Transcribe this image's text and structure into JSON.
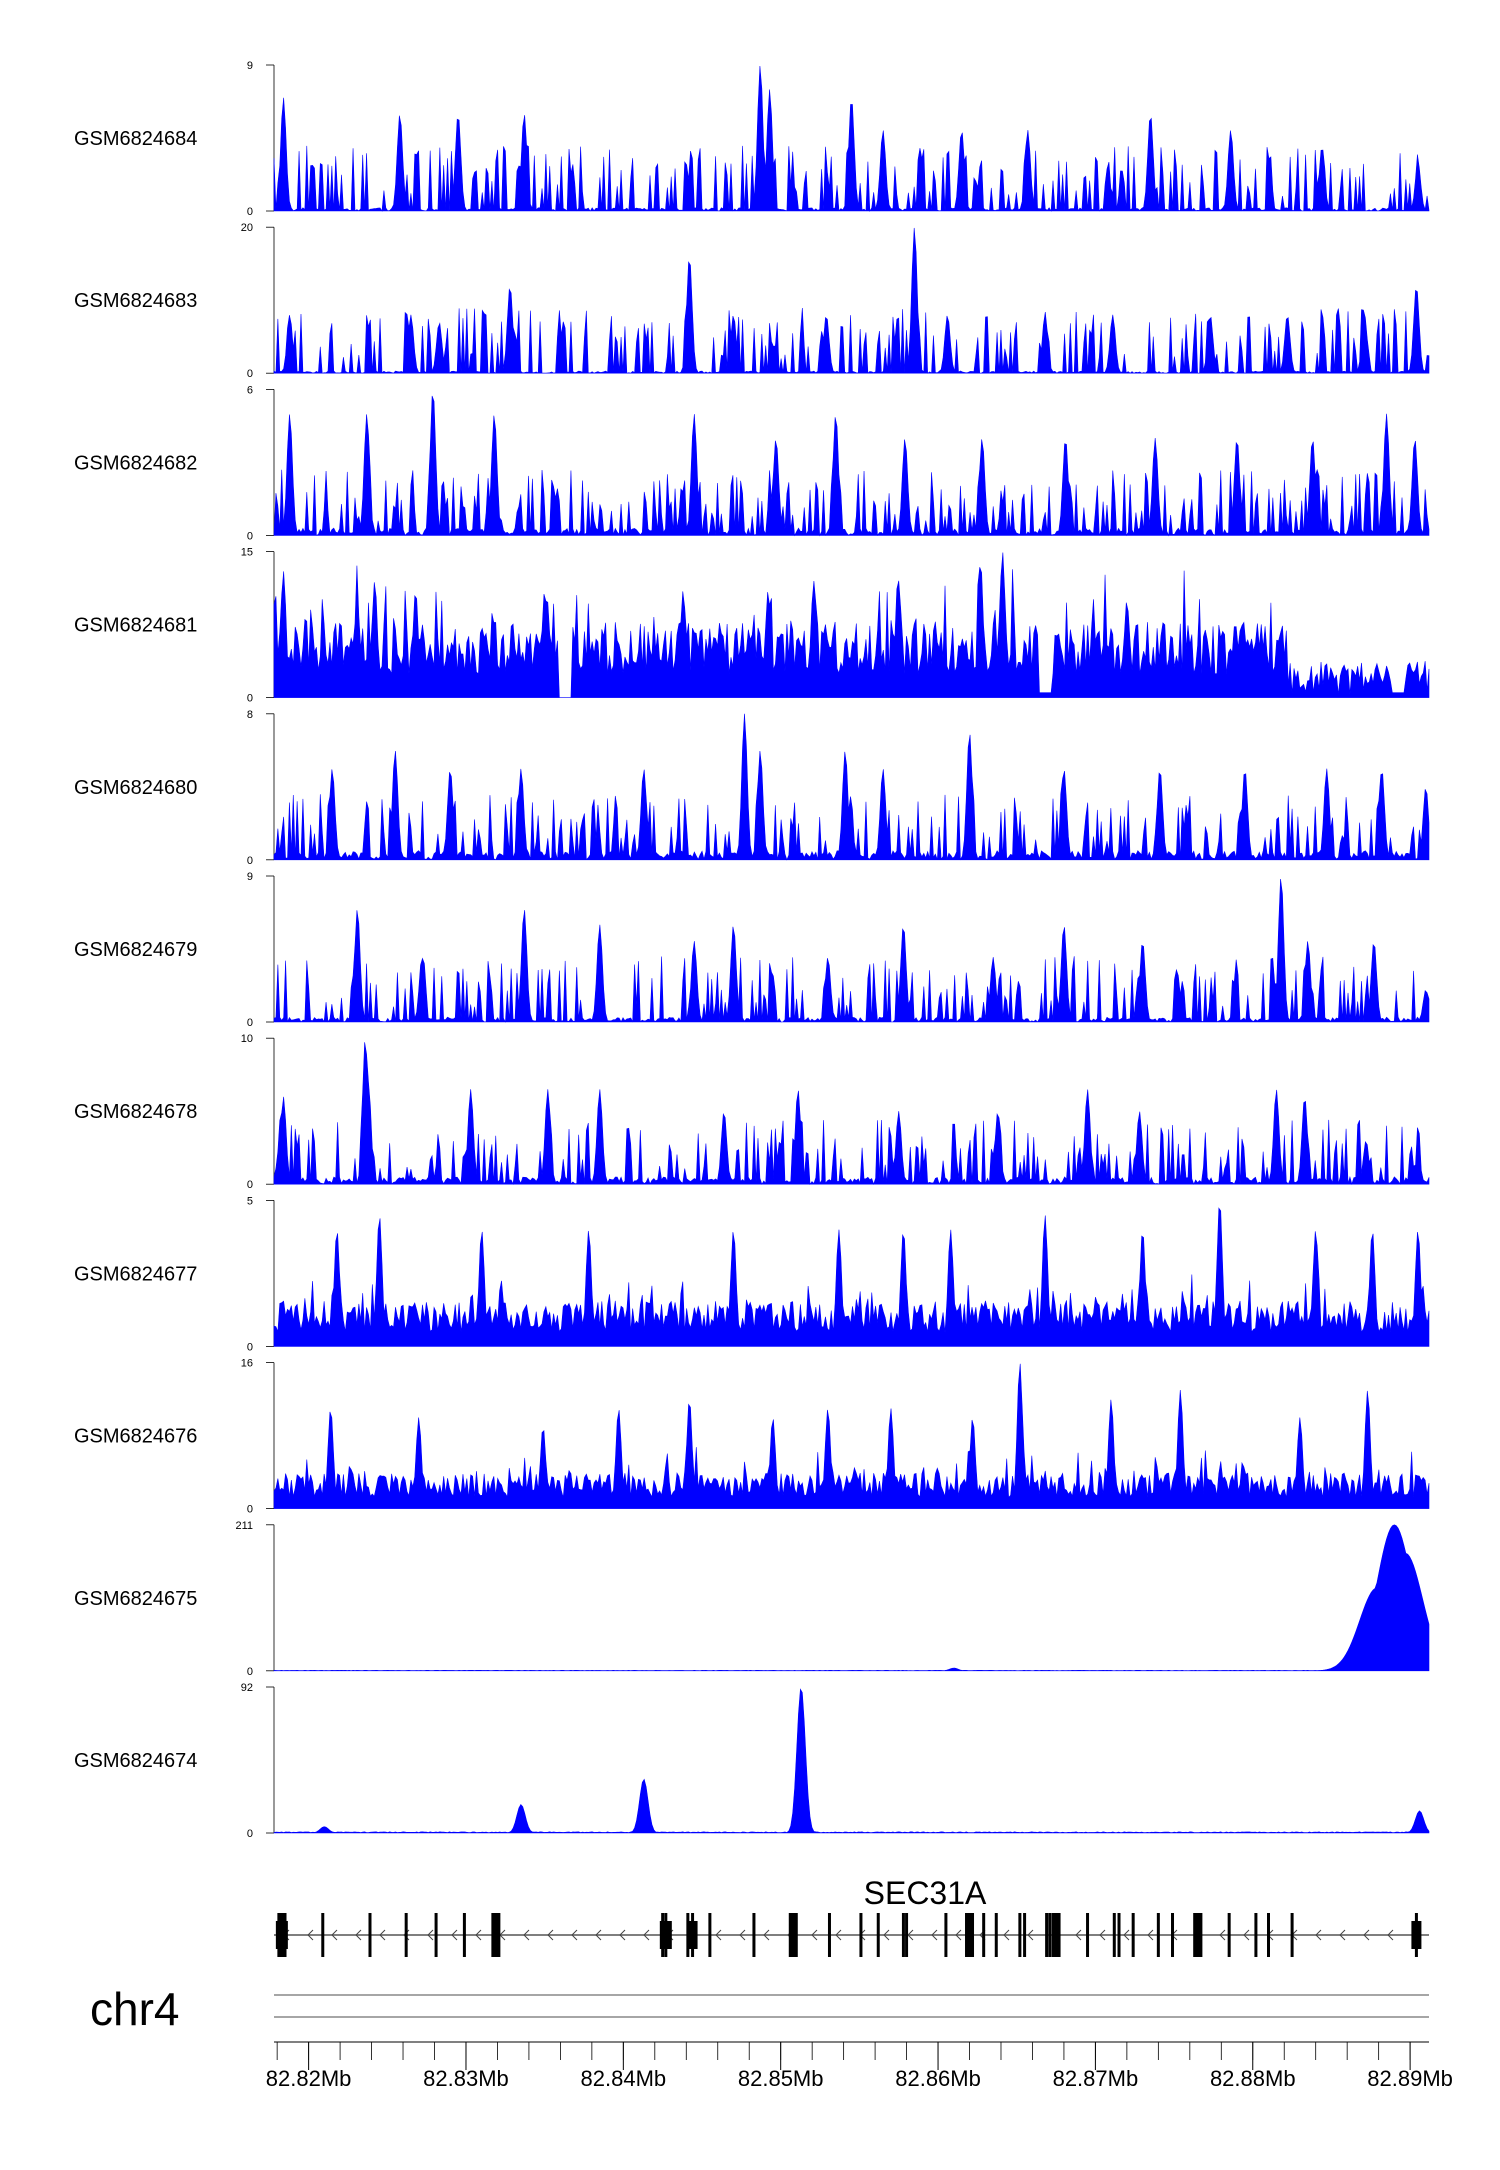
{
  "chart_data": {
    "type": "area",
    "title": "",
    "chromosome": "chr4",
    "xlim": [
      82.8178,
      82.8912
    ],
    "x_unit": "Mb",
    "x_ticks": [
      82.82,
      82.83,
      82.84,
      82.85,
      82.86,
      82.87,
      82.88,
      82.89
    ],
    "x_tick_labels": [
      "82.82Mb",
      "82.83Mb",
      "82.84Mb",
      "82.85Mb",
      "82.86Mb",
      "82.87Mb",
      "82.88Mb",
      "82.89Mb"
    ],
    "color": "#0000ff",
    "series": [
      {
        "name": "GSM6824684",
        "ymax": 9,
        "ymin": 0,
        "ymax_label": "9",
        "ymin_label": "0",
        "profile": "sparse",
        "baseline": 0.2,
        "peaks": [
          [
            82.8184,
            7.0
          ],
          [
            82.8258,
            6.0
          ],
          [
            82.8295,
            6.0
          ],
          [
            82.8337,
            6.0
          ],
          [
            82.8487,
            9.0
          ],
          [
            82.8493,
            7.5
          ],
          [
            82.8545,
            7.0
          ],
          [
            82.8565,
            5.0
          ],
          [
            82.8615,
            5.0
          ],
          [
            82.8657,
            5.0
          ],
          [
            82.8735,
            6.0
          ],
          [
            82.8786,
            5.0
          ],
          [
            82.8844,
            4.0
          ],
          [
            82.8905,
            3.0
          ]
        ]
      },
      {
        "name": "GSM6824683",
        "ymax": 20,
        "ymin": 0,
        "ymax_label": "20",
        "ymin_label": "0",
        "profile": "sparse",
        "baseline": 0.3,
        "peaks": [
          [
            82.8188,
            8.0
          ],
          [
            82.8265,
            8.0
          ],
          [
            82.8283,
            7.0
          ],
          [
            82.8328,
            12.0
          ],
          [
            82.8442,
            16.0
          ],
          [
            82.847,
            8.0
          ],
          [
            82.8529,
            8.0
          ],
          [
            82.8585,
            20.0
          ],
          [
            82.8606,
            8.0
          ],
          [
            82.8668,
            8.0
          ],
          [
            82.8711,
            8.0
          ],
          [
            82.8773,
            8.0
          ],
          [
            82.8822,
            8.0
          ],
          [
            82.8871,
            8.0
          ],
          [
            82.8904,
            12.0
          ]
        ]
      },
      {
        "name": "GSM6824682",
        "ymax": 6,
        "ymin": 0,
        "ymax_label": "6",
        "ymin_label": "0",
        "profile": "sparse",
        "baseline": 0.3,
        "peaks": [
          [
            82.8188,
            5.0
          ],
          [
            82.8237,
            5.0
          ],
          [
            82.8279,
            6.0
          ],
          [
            82.8318,
            5.0
          ],
          [
            82.8445,
            5.0
          ],
          [
            82.8497,
            4.0
          ],
          [
            82.8535,
            5.0
          ],
          [
            82.8579,
            4.0
          ],
          [
            82.8628,
            4.0
          ],
          [
            82.8681,
            4.0
          ],
          [
            82.8738,
            4.0
          ],
          [
            82.879,
            4.0
          ],
          [
            82.8838,
            4.0
          ],
          [
            82.8885,
            5.0
          ],
          [
            82.8903,
            4.0
          ]
        ]
      },
      {
        "name": "GSM6824681",
        "ymax": 15,
        "ymin": 0,
        "ymax_label": "15",
        "ymin_label": "0",
        "profile": "dense",
        "baseline": 6.0,
        "peaks": [
          [
            82.8184,
            13.0
          ],
          [
            82.8242,
            12.0
          ],
          [
            82.8268,
            11.0
          ],
          [
            82.835,
            11.0
          ],
          [
            82.8438,
            11.0
          ],
          [
            82.8492,
            11.0
          ],
          [
            82.8521,
            12.0
          ],
          [
            82.8575,
            12.0
          ],
          [
            82.8627,
            14.0
          ],
          [
            82.8641,
            15.0
          ],
          [
            82.867,
            12.0
          ],
          [
            82.872,
            10.0
          ],
          [
            82.8822,
            6.0
          ],
          [
            82.8866,
            3.0
          ],
          [
            82.891,
            1.5
          ]
        ],
        "dips": [
          [
            82.8363,
            0.0
          ],
          [
            82.8668,
            0.5
          ],
          [
            82.8892,
            0.5
          ]
        ]
      },
      {
        "name": "GSM6824680",
        "ymax": 8,
        "ymin": 0,
        "ymax_label": "8",
        "ymin_label": "0",
        "profile": "sparse",
        "baseline": 0.5,
        "peaks": [
          [
            82.8215,
            5.0
          ],
          [
            82.8255,
            6.0
          ],
          [
            82.829,
            5.0
          ],
          [
            82.8335,
            5.0
          ],
          [
            82.8413,
            5.0
          ],
          [
            82.8477,
            8.0
          ],
          [
            82.8487,
            6.0
          ],
          [
            82.8541,
            6.0
          ],
          [
            82.8565,
            5.0
          ],
          [
            82.862,
            7.0
          ],
          [
            82.868,
            5.0
          ],
          [
            82.8741,
            5.0
          ],
          [
            82.8795,
            5.0
          ],
          [
            82.8847,
            5.0
          ],
          [
            82.8882,
            5.0
          ],
          [
            82.891,
            4.0
          ]
        ]
      },
      {
        "name": "GSM6824679",
        "ymax": 9,
        "ymin": 0,
        "ymax_label": "9",
        "ymin_label": "0",
        "profile": "sparse",
        "baseline": 0.3,
        "peaks": [
          [
            82.8231,
            7.0
          ],
          [
            82.8272,
            4.0
          ],
          [
            82.8337,
            7.0
          ],
          [
            82.8385,
            6.0
          ],
          [
            82.8445,
            5.0
          ],
          [
            82.847,
            6.0
          ],
          [
            82.853,
            4.0
          ],
          [
            82.8578,
            6.0
          ],
          [
            82.8635,
            4.0
          ],
          [
            82.868,
            6.0
          ],
          [
            82.873,
            5.0
          ],
          [
            82.8818,
            9.0
          ],
          [
            82.8835,
            5.0
          ],
          [
            82.8877,
            5.0
          ],
          [
            82.891,
            2.0
          ]
        ]
      },
      {
        "name": "GSM6824678",
        "ymax": 10,
        "ymin": 0,
        "ymax_label": "10",
        "ymin_label": "0",
        "profile": "sparse",
        "baseline": 0.5,
        "peaks": [
          [
            82.8184,
            6.0
          ],
          [
            82.8238,
            7.0
          ],
          [
            82.8236,
            10.0
          ],
          [
            82.8303,
            6.5
          ],
          [
            82.8352,
            6.5
          ],
          [
            82.8385,
            6.5
          ],
          [
            82.8464,
            5.0
          ],
          [
            82.8511,
            6.5
          ],
          [
            82.8575,
            5.0
          ],
          [
            82.8638,
            5.0
          ],
          [
            82.8695,
            6.5
          ],
          [
            82.8728,
            5.0
          ],
          [
            82.8815,
            6.5
          ],
          [
            82.8833,
            6.0
          ],
          [
            82.8872,
            3.0
          ],
          [
            82.8905,
            2.0
          ]
        ]
      },
      {
        "name": "GSM6824677",
        "ymax": 5,
        "ymin": 0,
        "ymax_label": "5",
        "ymin_label": "0",
        "profile": "dense",
        "baseline": 1.2,
        "peaks": [
          [
            82.8218,
            4.0
          ],
          [
            82.8245,
            4.5
          ],
          [
            82.831,
            4.0
          ],
          [
            82.8378,
            4.0
          ],
          [
            82.847,
            4.0
          ],
          [
            82.8537,
            4.0
          ],
          [
            82.8578,
            4.0
          ],
          [
            82.8608,
            4.0
          ],
          [
            82.8668,
            4.5
          ],
          [
            82.873,
            4.0
          ],
          [
            82.8779,
            5.0
          ],
          [
            82.884,
            4.0
          ],
          [
            82.8876,
            4.0
          ],
          [
            82.8905,
            4.0
          ]
        ]
      },
      {
        "name": "GSM6824676",
        "ymax": 16,
        "ymin": 0,
        "ymax_label": "16",
        "ymin_label": "0",
        "profile": "dense",
        "baseline": 3.0,
        "peaks": [
          [
            82.8214,
            11.0
          ],
          [
            82.827,
            10.0
          ],
          [
            82.8349,
            9.0
          ],
          [
            82.8397,
            11.0
          ],
          [
            82.8442,
            12.0
          ],
          [
            82.8495,
            10.0
          ],
          [
            82.853,
            11.0
          ],
          [
            82.857,
            11.0
          ],
          [
            82.8622,
            10.0
          ],
          [
            82.8652,
            16.0
          ],
          [
            82.871,
            12.0
          ],
          [
            82.8754,
            13.0
          ],
          [
            82.883,
            10.0
          ],
          [
            82.8873,
            13.0
          ],
          [
            82.891,
            1.0
          ]
        ]
      },
      {
        "name": "GSM6824675",
        "ymax": 211,
        "ymin": 0,
        "ymax_label": "211",
        "ymin_label": "0",
        "profile": "flat",
        "baseline": 0.5,
        "peaks": [
          [
            82.861,
            4.0
          ],
          [
            82.8879,
            120.0
          ],
          [
            82.889,
            211.0
          ],
          [
            82.8897,
            170.0
          ],
          [
            82.8904,
            80.0
          ],
          [
            82.8911,
            60.0
          ]
        ]
      },
      {
        "name": "GSM6824674",
        "ymax": 92,
        "ymin": 0,
        "ymax_label": "92",
        "ymin_label": "0",
        "profile": "flat",
        "baseline": 0.5,
        "peaks": [
          [
            82.821,
            4.0
          ],
          [
            82.8335,
            18.0
          ],
          [
            82.8413,
            34.0
          ],
          [
            82.8513,
            92.0
          ],
          [
            82.8906,
            14.0
          ]
        ]
      }
    ],
    "gene_track": {
      "name": "SEC31A",
      "strand": "-",
      "exons_mb": [
        82.8183,
        82.8185,
        82.8209,
        82.8239,
        82.8262,
        82.8281,
        82.8299,
        82.8319,
        82.8425,
        82.8427,
        82.8441,
        82.8444,
        82.8455,
        82.8483,
        82.8508,
        82.8531,
        82.8551,
        82.8562,
        82.8578,
        82.858,
        82.8605,
        82.862,
        82.8629,
        82.8637,
        82.8652,
        82.8655,
        82.8669,
        82.8671,
        82.8675,
        82.8695,
        82.8712,
        82.8715,
        82.8724,
        82.874,
        82.8749,
        82.8765,
        82.8767,
        82.8785,
        82.8802,
        82.881,
        82.8825,
        82.8904
      ]
    }
  }
}
